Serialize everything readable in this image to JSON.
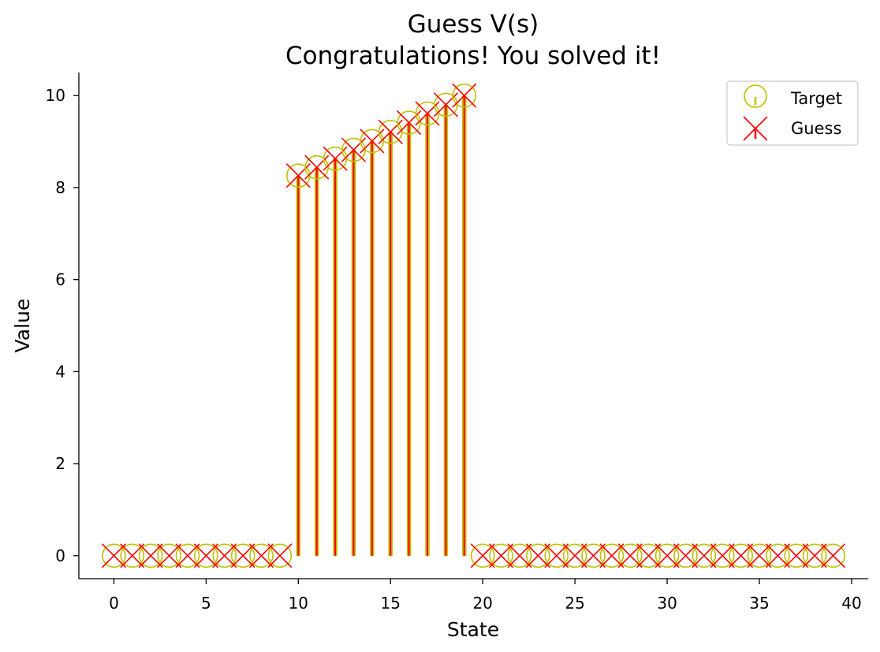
{
  "chart_data": {
    "type": "stem",
    "title": "Guess V(s)",
    "subtitle": "Congratulations! You solved it!",
    "xlabel": "State",
    "ylabel": "Value",
    "xlim": [
      -1.9,
      40.9
    ],
    "ylim": [
      -0.5,
      10.5
    ],
    "xticks": [
      0,
      5,
      10,
      15,
      20,
      25,
      30,
      35,
      40
    ],
    "yticks": [
      0,
      2,
      4,
      6,
      8,
      10
    ],
    "legend_position": "top-right",
    "grid": false,
    "x": [
      0,
      1,
      2,
      3,
      4,
      5,
      6,
      7,
      8,
      9,
      10,
      11,
      12,
      13,
      14,
      15,
      16,
      17,
      18,
      19,
      20,
      21,
      22,
      23,
      24,
      25,
      26,
      27,
      28,
      29,
      30,
      31,
      32,
      33,
      34,
      35,
      36,
      37,
      38,
      39
    ],
    "series": [
      {
        "name": "Target",
        "marker": "circle",
        "color": "#bfbf00",
        "values": [
          0,
          0,
          0,
          0,
          0,
          0,
          0,
          0,
          0,
          0,
          8.26,
          8.44,
          8.63,
          8.82,
          9.01,
          9.21,
          9.41,
          9.61,
          9.8,
          10.0,
          0,
          0,
          0,
          0,
          0,
          0,
          0,
          0,
          0,
          0,
          0,
          0,
          0,
          0,
          0,
          0,
          0,
          0,
          0,
          0
        ]
      },
      {
        "name": "Guess",
        "marker": "x",
        "color": "#ff0000",
        "values": [
          0,
          0,
          0,
          0,
          0,
          0,
          0,
          0,
          0,
          0,
          8.26,
          8.44,
          8.63,
          8.82,
          9.01,
          9.21,
          9.41,
          9.61,
          9.8,
          10.0,
          0,
          0,
          0,
          0,
          0,
          0,
          0,
          0,
          0,
          0,
          0,
          0,
          0,
          0,
          0,
          0,
          0,
          0,
          0,
          0
        ]
      }
    ]
  }
}
